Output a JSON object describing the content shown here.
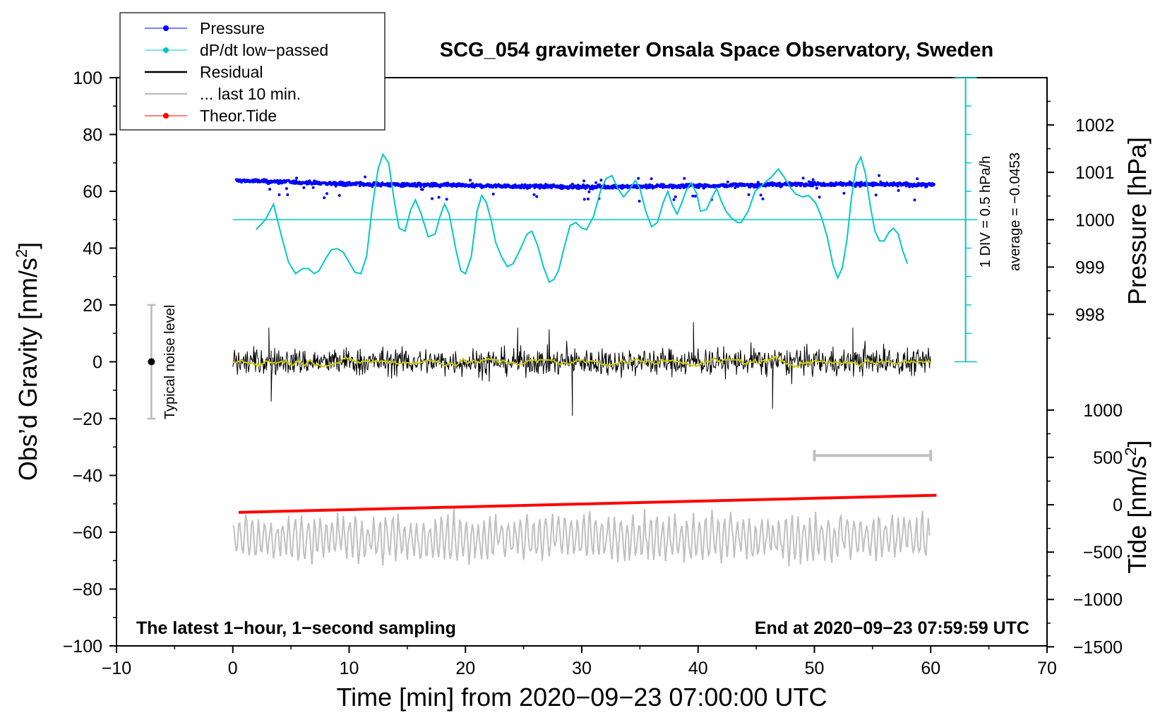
{
  "chart_data": {
    "type": "line",
    "title": "SCG_054 gravimeter Onsala Space Observatory, Sweden",
    "xlabel": "Time [min] from 2020−09−23 07:00:00 UTC",
    "ylabel_left": "Obs’d Gravity [nm/s",
    "ylabel_left_sup": "2",
    "ylabel_left_end": "]",
    "ylabel_pressure": "Pressure [hPa]",
    "ylabel_tide": "Tide [nm/s",
    "ylabel_tide_sup": "2",
    "ylabel_tide_end": "]",
    "xlim": [
      -10,
      70
    ],
    "ylim": [
      -100,
      100
    ],
    "x_ticks": [
      "−10",
      "0",
      "10",
      "20",
      "30",
      "40",
      "50",
      "60",
      "70"
    ],
    "x_tick_values": [
      -10,
      0,
      10,
      20,
      30,
      40,
      50,
      60,
      70
    ],
    "y_ticks": [
      "100",
      "80",
      "60",
      "40",
      "20",
      "0",
      "−20",
      "−40",
      "−60",
      "−80",
      "−100"
    ],
    "y_tick_values": [
      100,
      80,
      60,
      40,
      20,
      0,
      -20,
      -40,
      -60,
      -80,
      -100
    ],
    "pressure_ticks": [
      "1002",
      "1001",
      "1000",
      "999",
      "998"
    ],
    "pressure_tick_values": [
      1002,
      1001,
      1000,
      999,
      998
    ],
    "pressure_axis_map": {
      "hpa_at_y0": 1000,
      "y0": 50,
      "y_per_hpa": 16.67
    },
    "tide_ticks": [
      "1000",
      "500",
      "0",
      "−500",
      "−1000",
      "−1500"
    ],
    "tide_tick_values": [
      1000,
      500,
      0,
      -500,
      -1000,
      -1500
    ],
    "tide_axis_map": {
      "tide_at_y": 1000,
      "y": -17,
      "y_per_unit": 0.03333
    },
    "legend": [
      {
        "label": "Pressure",
        "color": "#0000ff",
        "marker": true
      },
      {
        "label": "dP/dt low−passed",
        "color": "#00c8c8",
        "marker": true
      },
      {
        "label": "Residual",
        "color": "#000000",
        "marker": false
      },
      {
        "label": "... last 10 min.",
        "color": "#c0c0c0",
        "marker": false
      },
      {
        "label": "Theor.Tide",
        "color": "#ff0000",
        "marker": true
      }
    ],
    "legend_position": "top-left",
    "annotations": {
      "bottom_left": "The latest 1−hour, 1−second sampling",
      "bottom_right": "End at 2020−09−23 07:59:59 UTC",
      "noise_label": "Typical noise level",
      "noise_range": [
        -20,
        20
      ],
      "noise_x": -7,
      "div_label": "1 DIV = 0.5 hPa/h",
      "average_label": "average = −0.0453",
      "dpdt_axis_x": 63,
      "dpdt_axis_range": [
        0,
        100
      ],
      "dpdt_zero_y": 50,
      "last10_bar": {
        "x_start": 50,
        "x_end": 60,
        "y": -33
      }
    },
    "series": [
      {
        "name": "Pressure",
        "color": "#0000ff",
        "x_range": [
          0.3,
          60.3
        ],
        "y_keypoints": [
          [
            0.3,
            63.8
          ],
          [
            10,
            62.6
          ],
          [
            20,
            62.0
          ],
          [
            30,
            61.5
          ],
          [
            40,
            61.9
          ],
          [
            50,
            62.6
          ],
          [
            60.3,
            62.3
          ]
        ],
        "scatter": 1.0,
        "outlier_band": 6.5
      },
      {
        "name": "dP/dt low−passed",
        "color": "#00c8c8",
        "points": [
          [
            2,
            46.5
          ],
          [
            2.8,
            50
          ],
          [
            3.5,
            55.5
          ],
          [
            4.2,
            44
          ],
          [
            4.8,
            35
          ],
          [
            5.4,
            31
          ],
          [
            6,
            32.8
          ],
          [
            6.5,
            32.8
          ],
          [
            7,
            31
          ],
          [
            7.4,
            32
          ],
          [
            8,
            36.5
          ],
          [
            8.5,
            39.5
          ],
          [
            9,
            39.8
          ],
          [
            9.5,
            38.5
          ],
          [
            10,
            35
          ],
          [
            10.5,
            31.5
          ],
          [
            11,
            31
          ],
          [
            11.5,
            37
          ],
          [
            12,
            55
          ],
          [
            12.5,
            68
          ],
          [
            12.9,
            73
          ],
          [
            13.4,
            70
          ],
          [
            13.9,
            56
          ],
          [
            14.3,
            47
          ],
          [
            14.8,
            46
          ],
          [
            15.3,
            53.5
          ],
          [
            15.7,
            57
          ],
          [
            16.2,
            52
          ],
          [
            16.8,
            44
          ],
          [
            17.4,
            45
          ],
          [
            17.8,
            51
          ],
          [
            18.2,
            55.5
          ],
          [
            18.6,
            52
          ],
          [
            19.2,
            39
          ],
          [
            19.6,
            32
          ],
          [
            20,
            31
          ],
          [
            20.5,
            37
          ],
          [
            21,
            53
          ],
          [
            21.4,
            58.5
          ],
          [
            21.8,
            56
          ],
          [
            22.2,
            50
          ],
          [
            22.6,
            42
          ],
          [
            23.1,
            37
          ],
          [
            23.6,
            33.5
          ],
          [
            24.1,
            34.5
          ],
          [
            24.7,
            39.5
          ],
          [
            25.3,
            45
          ],
          [
            25.7,
            46
          ],
          [
            26.2,
            41
          ],
          [
            26.7,
            33.5
          ],
          [
            27.2,
            28
          ],
          [
            27.6,
            29
          ],
          [
            28,
            32
          ],
          [
            28.6,
            42
          ],
          [
            29,
            48
          ],
          [
            29.5,
            49
          ],
          [
            30,
            47
          ],
          [
            30.4,
            46.5
          ],
          [
            31,
            51
          ],
          [
            31.6,
            60
          ],
          [
            32.1,
            64.5
          ],
          [
            32.6,
            65.5
          ],
          [
            33.1,
            61
          ],
          [
            33.6,
            58
          ],
          [
            34.1,
            60.5
          ],
          [
            34.6,
            63.8
          ],
          [
            35,
            61
          ],
          [
            35.5,
            53
          ],
          [
            36,
            47.5
          ],
          [
            36.5,
            49
          ],
          [
            37,
            56
          ],
          [
            37.4,
            60
          ],
          [
            37.8,
            55
          ],
          [
            38.2,
            52
          ],
          [
            38.6,
            56
          ],
          [
            39,
            60.5
          ],
          [
            39.4,
            63
          ],
          [
            39.9,
            59
          ],
          [
            40.2,
            53
          ],
          [
            40.7,
            53.5
          ],
          [
            41.1,
            57
          ],
          [
            41.6,
            61
          ],
          [
            42,
            56.5
          ],
          [
            42.4,
            53
          ],
          [
            42.9,
            50.5
          ],
          [
            43.4,
            49
          ],
          [
            43.7,
            49
          ],
          [
            44.3,
            53
          ],
          [
            44.9,
            60
          ],
          [
            45.6,
            62.5
          ],
          [
            46.3,
            65
          ],
          [
            46.9,
            67.8
          ],
          [
            47.4,
            65
          ],
          [
            47.9,
            61.5
          ],
          [
            48.4,
            59
          ],
          [
            49,
            58
          ],
          [
            49.5,
            58.5
          ],
          [
            50.1,
            56
          ],
          [
            50.6,
            51
          ],
          [
            51.1,
            44
          ],
          [
            51.6,
            34
          ],
          [
            52,
            29.5
          ],
          [
            52.4,
            33
          ],
          [
            52.8,
            43
          ],
          [
            53.2,
            58
          ],
          [
            53.6,
            69
          ],
          [
            54,
            72
          ],
          [
            54.4,
            66
          ],
          [
            54.8,
            55
          ],
          [
            55.2,
            46
          ],
          [
            55.6,
            42.5
          ],
          [
            56,
            42.5
          ],
          [
            56.4,
            45.5
          ],
          [
            56.8,
            47
          ],
          [
            57.2,
            45
          ],
          [
            57.6,
            39
          ],
          [
            58,
            34.5
          ]
        ]
      },
      {
        "name": "Residual",
        "color": "#000000",
        "x_range": [
          0,
          60
        ],
        "amplitude": 6.5,
        "spikes": [
          [
            3.3,
            -14
          ],
          [
            3.1,
            12
          ],
          [
            29.2,
            -19
          ],
          [
            39.6,
            14
          ],
          [
            46.4,
            -16.5
          ],
          [
            24.5,
            12
          ],
          [
            53.3,
            12
          ]
        ]
      },
      {
        "name": "Residual smoothed",
        "color": "#c8c800",
        "x_range": [
          0,
          60
        ],
        "amplitude": 1.2
      },
      {
        "name": "... last 10 min.",
        "color": "#c0c0c0",
        "x_range": [
          0,
          60
        ],
        "center": -62,
        "amplitude": 7,
        "min": -76,
        "max": -50
      },
      {
        "name": "Theor.Tide",
        "color": "#ff0000",
        "x": [
          0.5,
          60.5
        ],
        "y": [
          -53,
          -47
        ]
      }
    ]
  }
}
